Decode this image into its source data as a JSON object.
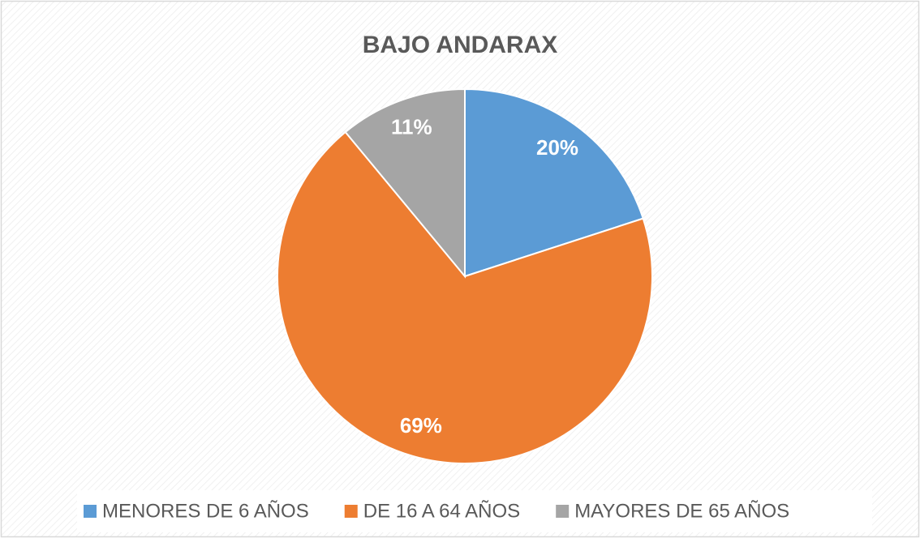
{
  "chart_data": {
    "type": "pie",
    "title": "BAJO ANDARAX",
    "categories": [
      "MENORES DE 6 AÑOS",
      "DE 16 A 64 AÑOS",
      "MAYORES DE 65 AÑOS"
    ],
    "values": [
      20,
      69,
      11
    ],
    "value_labels": [
      "20%",
      "69%",
      "11%"
    ],
    "colors": [
      "#5b9bd5",
      "#ed7d31",
      "#a5a5a5"
    ],
    "legend": "bottom"
  }
}
